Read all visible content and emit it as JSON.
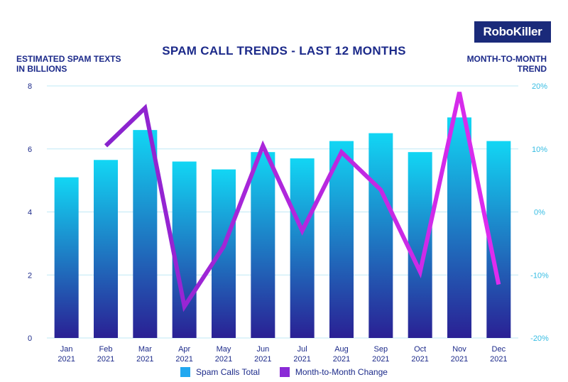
{
  "brand": {
    "logo_text": "RoboKiller"
  },
  "colors": {
    "title": "#1c2a8a",
    "bar_top": "#12d6f4",
    "bar_bottom": "#2a2094",
    "line_start": "#7a22c8",
    "line_end": "#e32cf0",
    "grid": "#bfe9f6",
    "left_tick": "#1c2a8a",
    "right_tick": "#36bde3",
    "legend_bars": "#22a8f0",
    "legend_line": "#8a2bd6"
  },
  "chart_data": {
    "type": "bar",
    "title": "SPAM CALL TRENDS - LAST 12 MONTHS",
    "ylabel": "ESTIMATED SPAM TEXTS IN BILLIONS",
    "ylabel_lines": [
      "ESTIMATED SPAM TEXTS",
      "IN BILLIONS"
    ],
    "y2label": "MONTH-TO-MONTH TREND",
    "y2label_lines": [
      "MONTH-TO-MONTH",
      "TREND"
    ],
    "categories": [
      [
        "Jan",
        "2021"
      ],
      [
        "Feb",
        "2021"
      ],
      [
        "Mar",
        "2021"
      ],
      [
        "Apr",
        "2021"
      ],
      [
        "May",
        "2021"
      ],
      [
        "Jun",
        "2021"
      ],
      [
        "Jul",
        "2021"
      ],
      [
        "Aug",
        "2021"
      ],
      [
        "Sep",
        "2021"
      ],
      [
        "Oct",
        "2021"
      ],
      [
        "Nov",
        "2021"
      ],
      [
        "Dec",
        "2021"
      ]
    ],
    "ylim": [
      0,
      8
    ],
    "yticks": [
      0,
      2,
      4,
      6,
      8
    ],
    "y2lim": [
      -20,
      20
    ],
    "y2ticks": [
      "-20%",
      "-10%",
      "0%",
      "10%",
      "20%"
    ],
    "y2tick_values": [
      -20,
      -10,
      0,
      10,
      20
    ],
    "grid": true,
    "series": [
      {
        "name": "Spam Calls Total",
        "type": "bar",
        "axis": "left",
        "values": [
          5.1,
          5.65,
          6.6,
          5.6,
          5.35,
          5.9,
          5.7,
          6.25,
          6.5,
          5.9,
          7.0,
          6.25
        ]
      },
      {
        "name": "Month-to-Month Change",
        "type": "line",
        "axis": "right",
        "values": [
          null,
          10.5,
          16.5,
          -15,
          -5.5,
          10.5,
          -3,
          9.5,
          3.5,
          -9.5,
          19,
          -11.5
        ]
      }
    ],
    "legend": [
      "Spam Calls Total",
      "Month-to-Month Change"
    ],
    "legend_position": "bottom"
  }
}
